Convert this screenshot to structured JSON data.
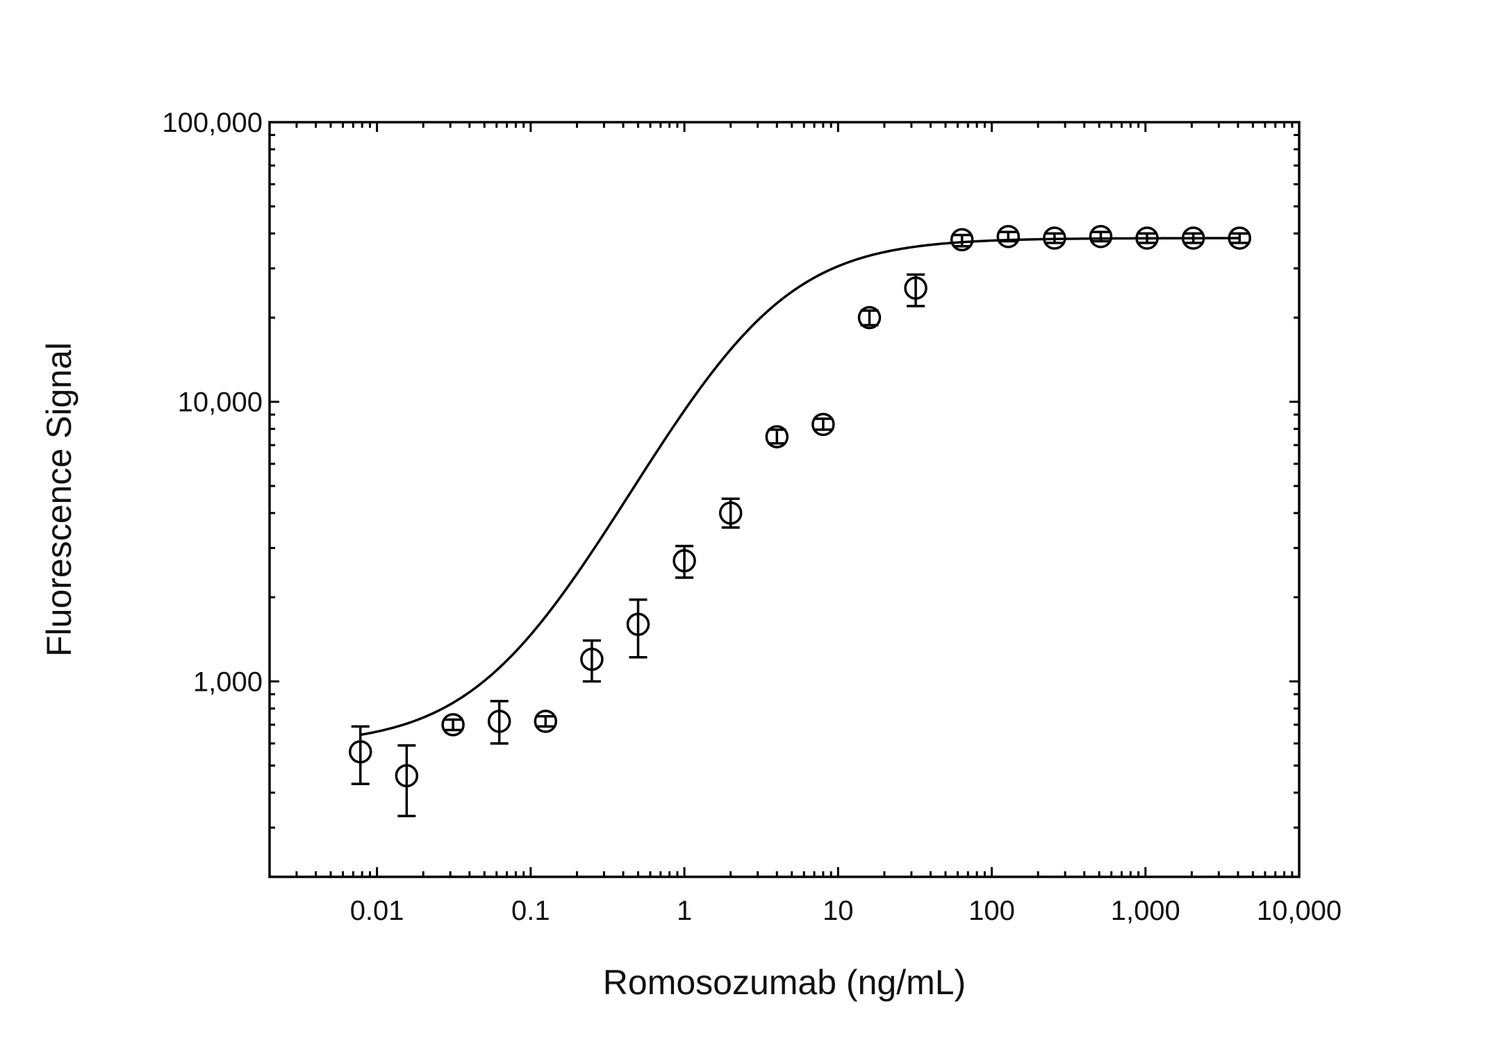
{
  "chart_data": {
    "type": "scatter",
    "title": "",
    "xlabel": "Romosozumab (ng/mL)",
    "ylabel": "Fluorescence Signal",
    "x_scale": "log",
    "y_scale": "log",
    "xlim": [
      0.002,
      10000
    ],
    "ylim": [
      200,
      100000
    ],
    "grid": false,
    "legend": "none",
    "x_tick_values": [
      0.01,
      0.1,
      1,
      10,
      100,
      1000,
      10000
    ],
    "x_tick_labels": [
      "0.01",
      "0.1",
      "1",
      "10",
      "100",
      "1,000",
      "10,000"
    ],
    "y_tick_values": [
      1000,
      10000,
      100000
    ],
    "y_tick_labels": [
      "1,000",
      "10,000",
      "100,000"
    ],
    "colors": {
      "marks": "#000000",
      "marker_fill": "#ffffff",
      "background": "#ffffff"
    },
    "series": [
      {
        "marker": "open-circle",
        "error_bars": true,
        "points": [
          {
            "x": 0.0078,
            "y": 560,
            "yerr_low": 430,
            "yerr_high": 690
          },
          {
            "x": 0.0156,
            "y": 460,
            "yerr_low": 330,
            "yerr_high": 590
          },
          {
            "x": 0.03125,
            "y": 700,
            "yerr_low": 670,
            "yerr_high": 730
          },
          {
            "x": 0.0625,
            "y": 720,
            "yerr_low": 600,
            "yerr_high": 850
          },
          {
            "x": 0.125,
            "y": 720,
            "yerr_low": 690,
            "yerr_high": 750
          },
          {
            "x": 0.25,
            "y": 1200,
            "yerr_low": 1000,
            "yerr_high": 1400
          },
          {
            "x": 0.5,
            "y": 1600,
            "yerr_low": 1220,
            "yerr_high": 1960
          },
          {
            "x": 1,
            "y": 2700,
            "yerr_low": 2350,
            "yerr_high": 3050
          },
          {
            "x": 2,
            "y": 4000,
            "yerr_low": 3550,
            "yerr_high": 4500
          },
          {
            "x": 4,
            "y": 7500,
            "yerr_low": 7100,
            "yerr_high": 7950
          },
          {
            "x": 8,
            "y": 8300,
            "yerr_low": 7950,
            "yerr_high": 8700
          },
          {
            "x": 16,
            "y": 20000,
            "yerr_low": 18800,
            "yerr_high": 21200
          },
          {
            "x": 32,
            "y": 25500,
            "yerr_low": 22000,
            "yerr_high": 28500
          },
          {
            "x": 64,
            "y": 38000,
            "yerr_low": 36000,
            "yerr_high": 39500
          },
          {
            "x": 128,
            "y": 39000,
            "yerr_low": 37500,
            "yerr_high": 40500
          },
          {
            "x": 256,
            "y": 38500,
            "yerr_low": 37000,
            "yerr_high": 40000
          },
          {
            "x": 512,
            "y": 39000,
            "yerr_low": 37500,
            "yerr_high": 40500
          },
          {
            "x": 1024,
            "y": 38500,
            "yerr_low": 37000,
            "yerr_high": 40000
          },
          {
            "x": 2048,
            "y": 38500,
            "yerr_low": 37000,
            "yerr_high": 40000
          },
          {
            "x": 4096,
            "y": 38500,
            "yerr_low": 37000,
            "yerr_high": 40000
          }
        ]
      }
    ],
    "fit": {
      "type": "4-parameter-logistic",
      "bottom": 590,
      "top": 38500,
      "ec50": 3.0,
      "hill": 1.1,
      "x_range": [
        0.0078,
        4096
      ]
    }
  }
}
